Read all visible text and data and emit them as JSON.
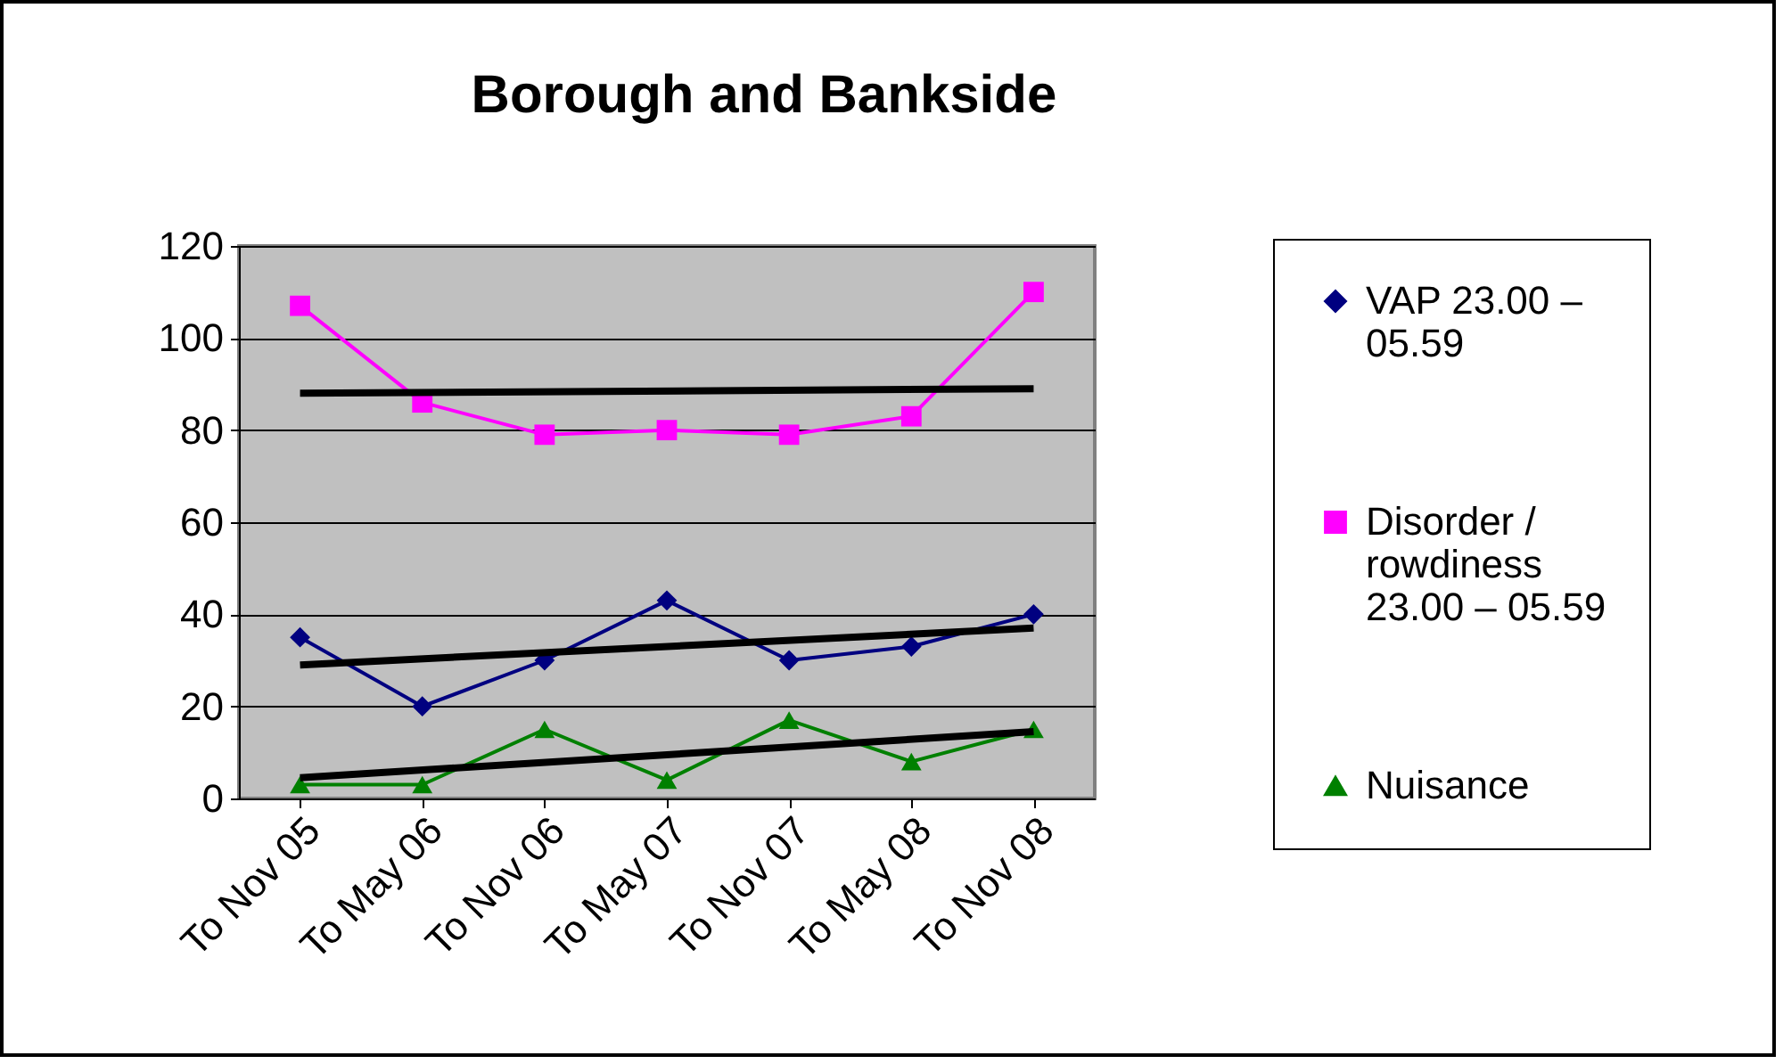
{
  "chart_data": {
    "type": "line",
    "title": "Borough and Bankside",
    "categories": [
      "To Nov 05",
      "To May 06",
      "To Nov 06",
      "To May 07",
      "To Nov 07",
      "To May 08",
      "To Nov 08"
    ],
    "series": [
      {
        "name": "VAP 23.00 – 05.59",
        "color": "#000080",
        "marker": "diamond",
        "values": [
          35,
          20,
          30,
          43,
          30,
          33,
          40
        ]
      },
      {
        "name": "Disorder / rowdiness 23.00 – 05.59",
        "color": "#ff00ff",
        "marker": "square",
        "values": [
          107,
          86,
          79,
          80,
          79,
          83,
          110
        ]
      },
      {
        "name": "Nuisance",
        "color": "#008000",
        "marker": "triangle",
        "values": [
          3,
          3,
          15,
          4,
          17,
          8,
          15
        ]
      },
      {
        "type": "line",
        "color": "#000000",
        "marker": "none",
        "x": [
          "To Nov 05",
          "To Nov 08"
        ],
        "values": [
          88,
          89
        ]
      },
      {
        "type": "line",
        "color": "#000000",
        "marker": "none",
        "x": [
          "To Nov 05",
          "To Nov 08"
        ],
        "values": [
          29,
          37
        ]
      },
      {
        "type": "line",
        "color": "#000000",
        "marker": "none",
        "x": [
          "To Nov 05",
          "To Nov 08"
        ],
        "values": [
          4.5,
          14.5
        ]
      }
    ],
    "ylim": [
      0,
      120
    ],
    "yticks": [
      0,
      20,
      40,
      60,
      80,
      100,
      120
    ],
    "grid": "y",
    "legend": "right"
  }
}
